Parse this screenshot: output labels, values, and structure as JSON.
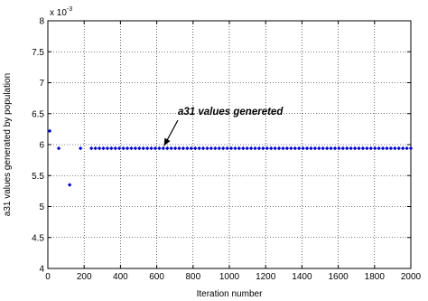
{
  "chart_data": {
    "type": "scatter",
    "xlabel": "Iteration number",
    "ylabel": "a31 values generated by population",
    "xlim": [
      0,
      2000
    ],
    "ylim": [
      4,
      8
    ],
    "xticks": [
      0,
      200,
      400,
      600,
      800,
      1000,
      1200,
      1400,
      1600,
      1800,
      2000
    ],
    "yticks": [
      4,
      4.5,
      5,
      5.5,
      6,
      6.5,
      7,
      7.5,
      8
    ],
    "xtick_labels": [
      "0",
      "200",
      "400",
      "600",
      "800",
      "1000",
      "1200",
      "1400",
      "1600",
      "1800",
      "2000"
    ],
    "ytick_labels": [
      "4",
      "4.5",
      "5",
      "5.5",
      "6",
      "6.5",
      "7",
      "7.5",
      "8"
    ],
    "y_exponent_prefix": "x 10",
    "y_exponent_power": "-3",
    "grid": true,
    "marker_color": "#0000cc",
    "annotation": {
      "text": "a31 values genereted",
      "arrow_to": [
        640,
        5.98
      ]
    },
    "series": [
      {
        "points": [
          [
            10,
            6.22
          ],
          [
            60,
            5.94
          ],
          [
            120,
            5.35
          ],
          [
            180,
            5.94
          ],
          [
            240,
            5.94
          ],
          [
            262,
            5.94
          ],
          [
            284,
            5.94
          ],
          [
            306,
            5.94
          ],
          [
            328,
            5.94
          ],
          [
            350,
            5.94
          ],
          [
            372,
            5.94
          ],
          [
            394,
            5.94
          ],
          [
            416,
            5.94
          ],
          [
            438,
            5.94
          ],
          [
            460,
            5.94
          ],
          [
            482,
            5.94
          ],
          [
            504,
            5.94
          ],
          [
            526,
            5.94
          ],
          [
            548,
            5.94
          ],
          [
            570,
            5.94
          ],
          [
            592,
            5.94
          ],
          [
            614,
            5.94
          ],
          [
            636,
            5.94
          ],
          [
            658,
            5.94
          ],
          [
            680,
            5.94
          ],
          [
            702,
            5.94
          ],
          [
            724,
            5.94
          ],
          [
            746,
            5.94
          ],
          [
            768,
            5.94
          ],
          [
            790,
            5.94
          ],
          [
            812,
            5.94
          ],
          [
            834,
            5.94
          ],
          [
            856,
            5.94
          ],
          [
            878,
            5.94
          ],
          [
            900,
            5.94
          ],
          [
            922,
            5.94
          ],
          [
            944,
            5.94
          ],
          [
            966,
            5.94
          ],
          [
            988,
            5.94
          ],
          [
            1010,
            5.94
          ],
          [
            1032,
            5.94
          ],
          [
            1054,
            5.94
          ],
          [
            1076,
            5.94
          ],
          [
            1098,
            5.94
          ],
          [
            1120,
            5.94
          ],
          [
            1142,
            5.94
          ],
          [
            1164,
            5.94
          ],
          [
            1186,
            5.94
          ],
          [
            1208,
            5.94
          ],
          [
            1230,
            5.94
          ],
          [
            1252,
            5.94
          ],
          [
            1274,
            5.94
          ],
          [
            1296,
            5.94
          ],
          [
            1318,
            5.94
          ],
          [
            1340,
            5.94
          ],
          [
            1362,
            5.94
          ],
          [
            1384,
            5.94
          ],
          [
            1406,
            5.94
          ],
          [
            1428,
            5.94
          ],
          [
            1450,
            5.94
          ],
          [
            1472,
            5.94
          ],
          [
            1494,
            5.94
          ],
          [
            1516,
            5.94
          ],
          [
            1538,
            5.94
          ],
          [
            1560,
            5.94
          ],
          [
            1582,
            5.94
          ],
          [
            1604,
            5.94
          ],
          [
            1626,
            5.94
          ],
          [
            1648,
            5.94
          ],
          [
            1670,
            5.94
          ],
          [
            1692,
            5.94
          ],
          [
            1714,
            5.94
          ],
          [
            1736,
            5.94
          ],
          [
            1758,
            5.94
          ],
          [
            1780,
            5.94
          ],
          [
            1802,
            5.94
          ],
          [
            1824,
            5.94
          ],
          [
            1846,
            5.94
          ],
          [
            1868,
            5.94
          ],
          [
            1890,
            5.94
          ],
          [
            1912,
            5.94
          ],
          [
            1934,
            5.94
          ],
          [
            1956,
            5.94
          ],
          [
            1978,
            5.94
          ],
          [
            2000,
            5.94
          ]
        ]
      }
    ]
  }
}
